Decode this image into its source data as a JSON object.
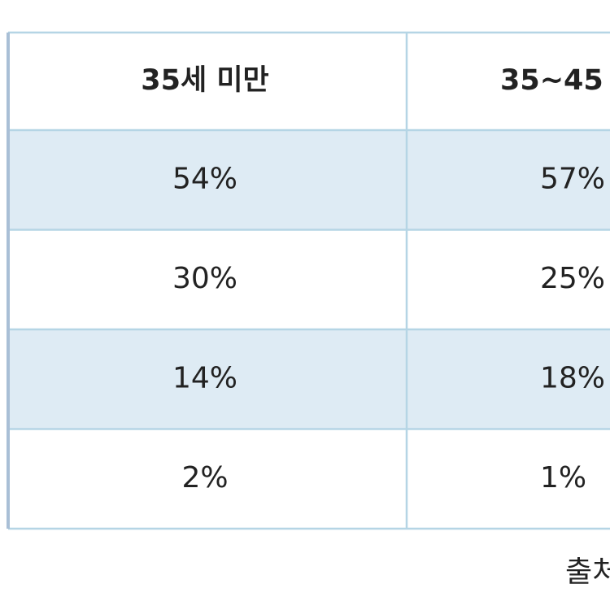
{
  "table": {
    "header": [
      "35세 미만",
      "35~45"
    ],
    "rows": [
      [
        "54%",
        "57%"
      ],
      [
        "30%",
        "25%"
      ],
      [
        "14%",
        "18%"
      ],
      [
        "2%",
        "1%"
      ]
    ]
  },
  "source": "출처"
}
